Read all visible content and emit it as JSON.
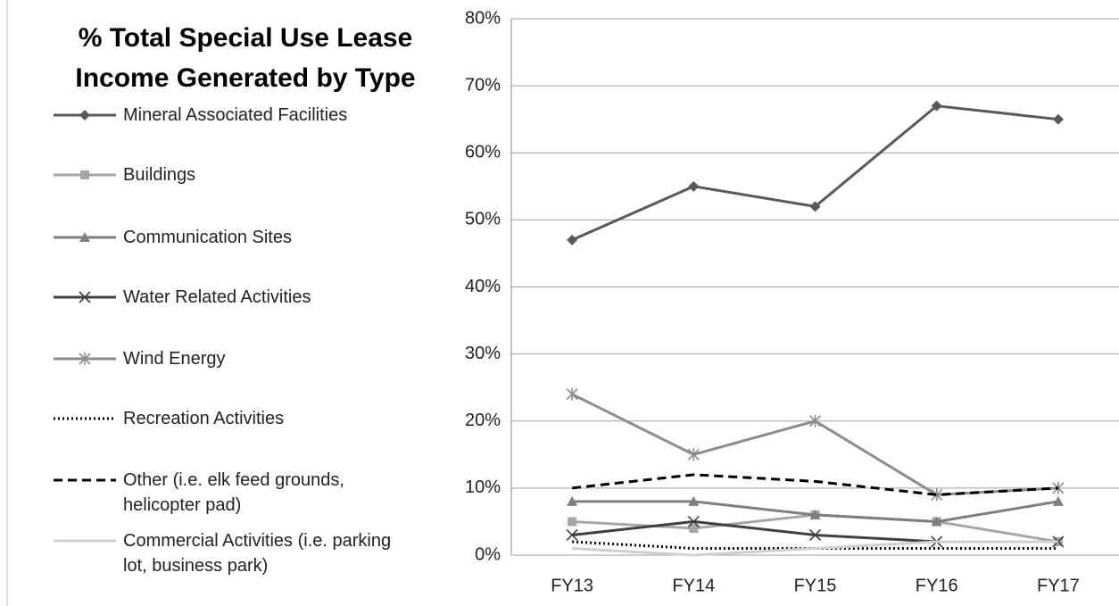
{
  "chart_data": {
    "type": "line",
    "title": "% Total Special Use Lease Income Generated by Type",
    "categories": [
      "FY13",
      "FY14",
      "FY15",
      "FY16",
      "FY17"
    ],
    "series": [
      {
        "name": "Mineral Associated Facilities",
        "color": "#595959",
        "marker": "diamond",
        "dash": "solid",
        "values": [
          47,
          55,
          52,
          67,
          65
        ]
      },
      {
        "name": "Buildings",
        "color": "#a6a6a6",
        "marker": "square",
        "dash": "solid",
        "values": [
          5,
          4,
          6,
          5,
          2
        ]
      },
      {
        "name": "Communication Sites",
        "color": "#7f7f7f",
        "marker": "triangle",
        "dash": "solid",
        "values": [
          8,
          8,
          6,
          5,
          8
        ]
      },
      {
        "name": "Water Related Activities",
        "color": "#404040",
        "marker": "x",
        "dash": "solid",
        "values": [
          3,
          5,
          3,
          2,
          2
        ]
      },
      {
        "name": "Wind Energy",
        "color": "#8c8c8c",
        "marker": "asterisk",
        "dash": "solid",
        "values": [
          24,
          15,
          20,
          9,
          10
        ]
      },
      {
        "name": "Recreation Activities",
        "color": "#000000",
        "marker": "none",
        "dash": "dotted",
        "values": [
          2,
          1,
          1,
          1,
          1
        ]
      },
      {
        "name": "Other (i.e. elk feed grounds, helicopter pad)",
        "color": "#000000",
        "marker": "none",
        "dash": "dashed",
        "values": [
          10,
          12,
          11,
          9,
          10
        ]
      },
      {
        "name": "Commercial Activities (i.e. parking lot, business park)",
        "color": "#d0d0d0",
        "marker": "none",
        "dash": "solid",
        "values": [
          1,
          0,
          1,
          2,
          2
        ]
      }
    ],
    "ylim": [
      0,
      80
    ],
    "yticks": [
      {
        "value": 0,
        "label": "0%"
      },
      {
        "value": 10,
        "label": "10%"
      },
      {
        "value": 20,
        "label": "20%"
      },
      {
        "value": 30,
        "label": "30%"
      },
      {
        "value": 40,
        "label": "40%"
      },
      {
        "value": 50,
        "label": "50%"
      },
      {
        "value": 60,
        "label": "60%"
      },
      {
        "value": 70,
        "label": "70%"
      },
      {
        "value": 80,
        "label": "80%"
      }
    ],
    "grid": true,
    "legend": "left"
  }
}
